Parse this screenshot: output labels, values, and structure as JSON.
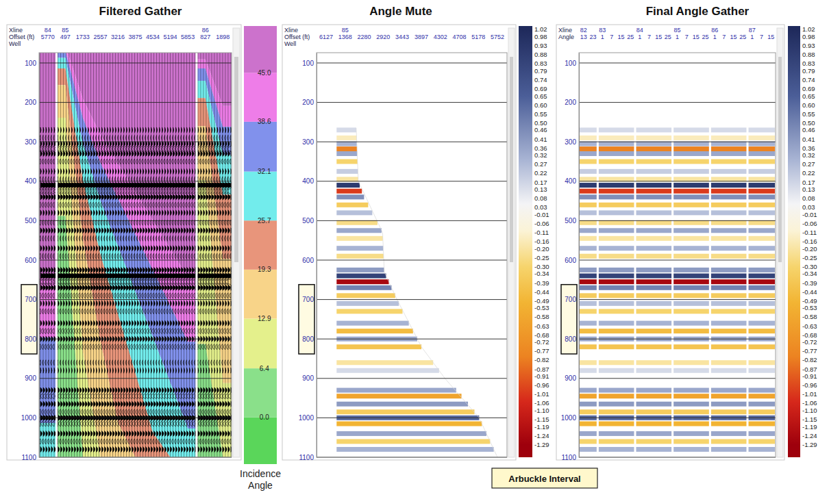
{
  "chart_data": [
    {
      "type": "wiggle",
      "title": "Filtered Gather",
      "header_labels": [
        "Xline",
        "Offset (ft)",
        "Well"
      ],
      "xline": [
        84,
        85,
        null,
        null,
        null,
        null,
        null,
        null,
        null,
        86,
        null
      ],
      "x": [
        5770,
        497,
        1733,
        2557,
        3216,
        3875,
        4534,
        5194,
        5853,
        827,
        1898
      ],
      "ylim": [
        74,
        1100
      ],
      "yticks": [
        100,
        200,
        300,
        400,
        500,
        600,
        700,
        800,
        900,
        1000,
        1100
      ],
      "grid": true,
      "angle_contours": {
        "angles": [
          45,
          38.6,
          32.1,
          25.7,
          19.3,
          12.9,
          6.4
        ],
        "time": [
          [
            635,
            55,
            191,
            281,
            354,
            426,
            499,
            571,
            644,
            91,
            209
          ],
          [
            796,
            69,
            239,
            353,
            443,
            534,
            625,
            716,
            807,
            114,
            262
          ],
          [
            1013,
            87,
            304,
            449,
            564,
            680,
            795,
            911,
            1027,
            145,
            333
          ],
          [
            null,
            114,
            396,
            585,
            736,
            886,
            1037,
            null,
            null,
            189,
            434
          ],
          [
            null,
            156,
            545,
            804,
            1011,
            null,
            null,
            null,
            null,
            260,
            597
          ],
          [
            null,
            239,
            832,
            null,
            null,
            null,
            null,
            null,
            null,
            397,
            912
          ],
          [
            null,
            488,
            null,
            null,
            null,
            null,
            null,
            null,
            null,
            813,
            null
          ]
        ]
      },
      "events": {
        "time": [
          270,
          290,
          305,
          318,
          330,
          350,
          375,
          395,
          410,
          425,
          440,
          460,
          480,
          505,
          525,
          545,
          570,
          590,
          625,
          640,
          655,
          670,
          690,
          710,
          730,
          760,
          780,
          800,
          820,
          860,
          880,
          930,
          945,
          965,
          985,
          1000,
          1015,
          1040,
          1060,
          1080
        ],
        "amplitude": [
          0.15,
          -0.15,
          0.3,
          -0.8,
          0.35,
          -0.3,
          0.2,
          -0.2,
          0.9,
          -1.0,
          0.45,
          -0.35,
          0.25,
          -0.25,
          0.35,
          -0.2,
          0.3,
          -0.25,
          0.4,
          0.85,
          -1.25,
          0.5,
          -0.35,
          0.25,
          -0.3,
          0.3,
          -0.45,
          0.35,
          -0.4,
          -0.2,
          0.15,
          0.35,
          -0.6,
          0.4,
          -0.35,
          0.6,
          -0.5,
          0.35,
          -0.3,
          0.3
        ]
      },
      "colorbar": {
        "label": "Incidence Angle",
        "lim": [
          -6.1,
          51.1
        ],
        "ticks": [
          {
            "value": 0,
            "label": "0.0"
          },
          6.4,
          12.9,
          19.3,
          25.7,
          32.1,
          38.6,
          {
            "value": 45,
            "label": "45.0"
          }
        ],
        "colors": [
          "#5ad65a",
          "#8ae08a",
          "#e4f08c",
          "#f8d489",
          "#e8957b",
          "#72ecec",
          "#8191ec",
          "#ee7de8",
          "#cc72cc"
        ]
      }
    },
    {
      "type": "density",
      "title": "Angle Mute",
      "header_labels": [
        "Xline",
        "Offset (ft)",
        "Well"
      ],
      "xline": [
        null,
        85,
        null,
        null,
        null,
        null,
        null,
        null,
        null,
        null
      ],
      "x": [
        6127,
        1368,
        2280,
        2920,
        3443,
        3897,
        4302,
        4708,
        5178,
        5752
      ],
      "ylim": [
        74,
        1100
      ],
      "yticks": [
        100,
        200,
        300,
        400,
        500,
        600,
        700,
        800,
        900,
        1000,
        1100
      ],
      "grid": true,
      "mute": {
        "time": [
          265,
          400,
          530,
          630,
          700,
          820,
          900,
          1000,
          1100
        ],
        "x": [
          1900,
          2000,
          2900,
          2950,
          3300,
          3900,
          4400,
          5200,
          5750
        ]
      },
      "events": {
        "time": [
          270,
          290,
          305,
          318,
          330,
          350,
          375,
          395,
          410,
          425,
          440,
          460,
          480,
          505,
          525,
          545,
          570,
          590,
          625,
          640,
          655,
          670,
          690,
          710,
          730,
          760,
          780,
          800,
          820,
          860,
          880,
          930,
          945,
          965,
          985,
          1000,
          1015,
          1040,
          1060,
          1080
        ],
        "amplitude": [
          0.15,
          -0.15,
          0.3,
          -0.8,
          0.35,
          -0.3,
          0.2,
          -0.2,
          0.9,
          -1.0,
          0.45,
          -0.35,
          0.25,
          -0.25,
          0.35,
          -0.2,
          0.3,
          -0.25,
          0.4,
          0.85,
          -1.25,
          0.5,
          -0.35,
          0.25,
          -0.3,
          0.3,
          -0.45,
          0.35,
          -0.4,
          -0.2,
          0.15,
          0.35,
          -0.6,
          0.4,
          -0.35,
          0.6,
          -0.5,
          0.35,
          -0.3,
          0.3
        ]
      },
      "colorbar": {
        "lim": [
          -1.36,
          1.04
        ],
        "ticks": [
          1.02,
          0.98,
          0.93,
          0.88,
          0.83,
          0.79,
          0.74,
          0.69,
          0.65,
          {
            "value": 0.6,
            "label": "0.60"
          },
          0.55,
          {
            "value": 0.5,
            "label": "0.50"
          },
          0.46,
          0.41,
          0.36,
          0.32,
          0.27,
          0.22,
          0.17,
          0.13,
          0.08,
          0.03,
          -0.01,
          -0.06,
          -0.11,
          -0.16,
          {
            "value": -0.2,
            "label": "-0.20"
          },
          -0.25,
          {
            "value": -0.3,
            "label": "-0.30"
          },
          -0.34,
          -0.39,
          -0.44,
          -0.49,
          -0.53,
          -0.58,
          -0.63,
          -0.68,
          -0.72,
          -0.77,
          -0.82,
          -0.87,
          -0.91,
          -0.96,
          -1.01,
          -1.06,
          {
            "value": -1.1,
            "label": "-1.10"
          },
          -1.15,
          -1.19,
          -1.24,
          -1.29
        ],
        "stops": [
          1.02,
          0.65,
          0.3,
          0.05,
          -0.1,
          -0.3,
          -0.5,
          -0.8,
          -1.05,
          -1.29
        ],
        "colors": [
          "#1f2a5c",
          "#4b5e98",
          "#a7b3d3",
          "#f4f4f6",
          "#fbf3d6",
          "#f6d46c",
          "#f2b433",
          "#ec8321",
          "#d6281b",
          "#9e000c"
        ]
      }
    },
    {
      "type": "density",
      "title": "Final Angle Gather",
      "header_labels": [
        "Xline",
        "Angle"
      ],
      "xline": [
        82,
        null,
        83,
        null,
        null,
        null,
        84,
        null,
        null,
        null,
        85,
        null,
        null,
        null,
        86,
        null,
        null,
        null,
        87,
        null,
        null
      ],
      "x": [
        13,
        23,
        1,
        7,
        15,
        25,
        1,
        7,
        15,
        25,
        1,
        7,
        15,
        25,
        1,
        7,
        15,
        25,
        1,
        7,
        15
      ],
      "ylim": [
        74,
        1100
      ],
      "yticks": [
        100,
        200,
        300,
        400,
        500,
        600,
        700,
        800,
        900,
        1000,
        1100
      ],
      "grid": true,
      "events": {
        "time": [
          270,
          290,
          305,
          318,
          330,
          350,
          375,
          395,
          410,
          425,
          440,
          460,
          480,
          505,
          525,
          545,
          570,
          590,
          625,
          640,
          655,
          670,
          690,
          710,
          730,
          760,
          780,
          800,
          820,
          860,
          880,
          930,
          945,
          965,
          985,
          1000,
          1015,
          1040,
          1060,
          1080
        ],
        "amplitude": [
          0.15,
          -0.15,
          0.3,
          -0.8,
          0.35,
          -0.3,
          0.2,
          -0.2,
          0.9,
          -1.0,
          0.45,
          -0.35,
          0.25,
          -0.25,
          0.35,
          -0.2,
          0.3,
          -0.25,
          0.4,
          0.85,
          -1.25,
          0.5,
          -0.35,
          0.25,
          -0.3,
          0.3,
          -0.45,
          0.35,
          -0.4,
          -0.2,
          0.15,
          0.35,
          -0.6,
          0.4,
          -0.35,
          0.6,
          -0.5,
          0.35,
          -0.3,
          0.3
        ]
      },
      "colorbar": {
        "lim": [
          -1.36,
          1.04
        ],
        "ticks": [
          1.02,
          0.98,
          0.93,
          0.88,
          0.83,
          0.79,
          0.74,
          0.69,
          0.65,
          {
            "value": 0.6,
            "label": "0.60"
          },
          0.55,
          {
            "value": 0.5,
            "label": "0.50"
          },
          0.46,
          0.41,
          0.36,
          0.32,
          0.27,
          0.22,
          0.17,
          0.13,
          0.08,
          0.03,
          -0.01,
          -0.06,
          -0.11,
          -0.16,
          {
            "value": -0.2,
            "label": "-0.20"
          },
          -0.25,
          {
            "value": -0.3,
            "label": "-0.30"
          },
          -0.34,
          -0.39,
          -0.44,
          -0.49,
          -0.53,
          -0.58,
          -0.63,
          -0.68,
          -0.72,
          -0.77,
          -0.82,
          -0.87,
          -0.91,
          -0.96,
          -1.01,
          -1.06,
          {
            "value": -1.1,
            "label": "-1.10"
          },
          -1.15,
          -1.19,
          -1.24,
          -1.29
        ],
        "stops": [
          1.02,
          0.65,
          0.3,
          0.05,
          -0.1,
          -0.3,
          -0.5,
          -0.8,
          -1.05,
          -1.29
        ],
        "colors": [
          "#1f2a5c",
          "#4b5e98",
          "#a7b3d3",
          "#f4f4f6",
          "#fbf3d6",
          "#f6d46c",
          "#f2b433",
          "#ec8321",
          "#d6281b",
          "#9e000c"
        ]
      }
    }
  ],
  "annotation": {
    "text": "Arbuckle Interval",
    "range": [
      662,
      838
    ]
  }
}
